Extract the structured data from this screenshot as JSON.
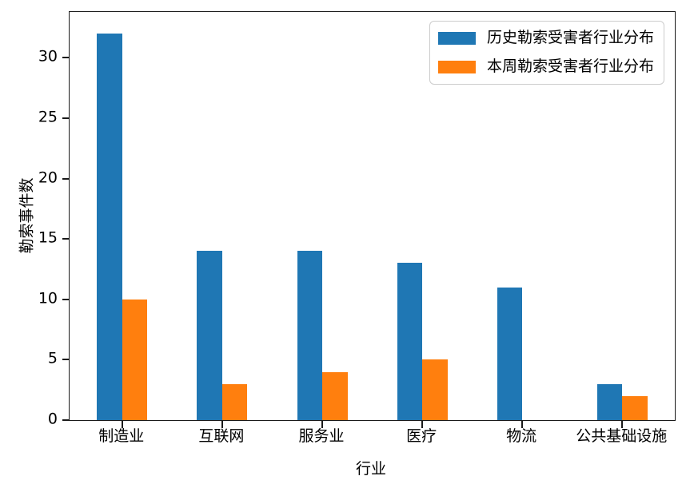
{
  "chart_data": {
    "type": "bar",
    "title": "",
    "xlabel": "行业",
    "ylabel": "勒索事件数",
    "categories": [
      "制造业",
      "互联网",
      "服务业",
      "医疗",
      "物流",
      "公共基础设施"
    ],
    "series": [
      {
        "name": "历史勒索受害者行业分布",
        "color": "#1f77b4",
        "values": [
          32,
          14,
          14,
          13,
          11,
          3
        ]
      },
      {
        "name": "本周勒索受害者行业分布",
        "color": "#ff7f0e",
        "values": [
          10,
          3,
          4,
          5,
          0,
          2
        ]
      }
    ],
    "yticks": [
      0,
      5,
      10,
      15,
      20,
      25,
      30
    ],
    "ylim": [
      0,
      33.8
    ],
    "grid": false,
    "legend_position": "upper right",
    "axis_color": "#1a1a1a",
    "legend_border_color": "#cccccc"
  }
}
